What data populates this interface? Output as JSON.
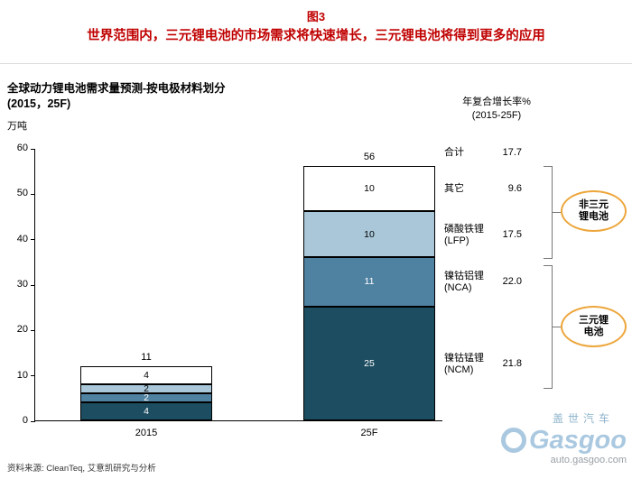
{
  "header": {
    "figure_label": "图3",
    "title": "世界范围内，三元锂电池的市场需求将快速增长，三元锂电池将得到更多的应用",
    "accent_color": "#c00000"
  },
  "chart": {
    "title_line1": "全球动力锂电池需求量预测-按电极材料划分",
    "title_line2": "(2015，25F)",
    "unit": "万吨",
    "cagr_header_line1": "年复合增长率%",
    "cagr_header_line2": "(2015-25F)"
  },
  "chart_data": {
    "type": "bar",
    "stacked": true,
    "title": "全球动力锂电池需求量预测-按电极材料划分 (2015，25F)",
    "ylabel": "万吨",
    "ylim": [
      0,
      60
    ],
    "yticks": [
      0,
      10,
      20,
      30,
      40,
      50,
      60
    ],
    "categories": [
      "2015",
      "25F"
    ],
    "series": [
      {
        "name": "镍钴锰锂 (NCM)",
        "label": "镍钴锰锂",
        "code": "(NCM)",
        "values": [
          4,
          25
        ],
        "color": "#1d4d60",
        "text_color": "#ffffff",
        "cagr": "21.8"
      },
      {
        "name": "镍钴铝锂 (NCA)",
        "label": "镍钴铝锂",
        "code": "(NCA)",
        "values": [
          2,
          11
        ],
        "color": "#4f81a1",
        "text_color": "#ffffff",
        "cagr": "22.0"
      },
      {
        "name": "磷酸铁锂 (LFP)",
        "label": "磷酸铁锂",
        "code": "(LFP)",
        "values": [
          2,
          10
        ],
        "color": "#a9c7d8",
        "text_color": "#000000",
        "cagr": "17.5"
      },
      {
        "name": "其它",
        "label": "其它",
        "code": "",
        "values": [
          4,
          10
        ],
        "color": "#ffffff",
        "text_color": "#000000",
        "cagr": "9.6"
      }
    ],
    "totals": [
      11,
      56
    ],
    "total_label": "合计",
    "total_cagr": "17.7",
    "legend_position": "right",
    "grid": false
  },
  "annotations": {
    "non_ternary": [
      "非三元",
      "锂电池"
    ],
    "ternary": [
      "三元锂",
      "电池"
    ],
    "oval_border_color": "#eda63b"
  },
  "footer": {
    "source": "资料来源: CleanTeq, 艾意凯研究与分析"
  },
  "logo": {
    "cn": "盖世汽车",
    "en": "Gasgoo",
    "url": "auto.gasgoo.com"
  }
}
